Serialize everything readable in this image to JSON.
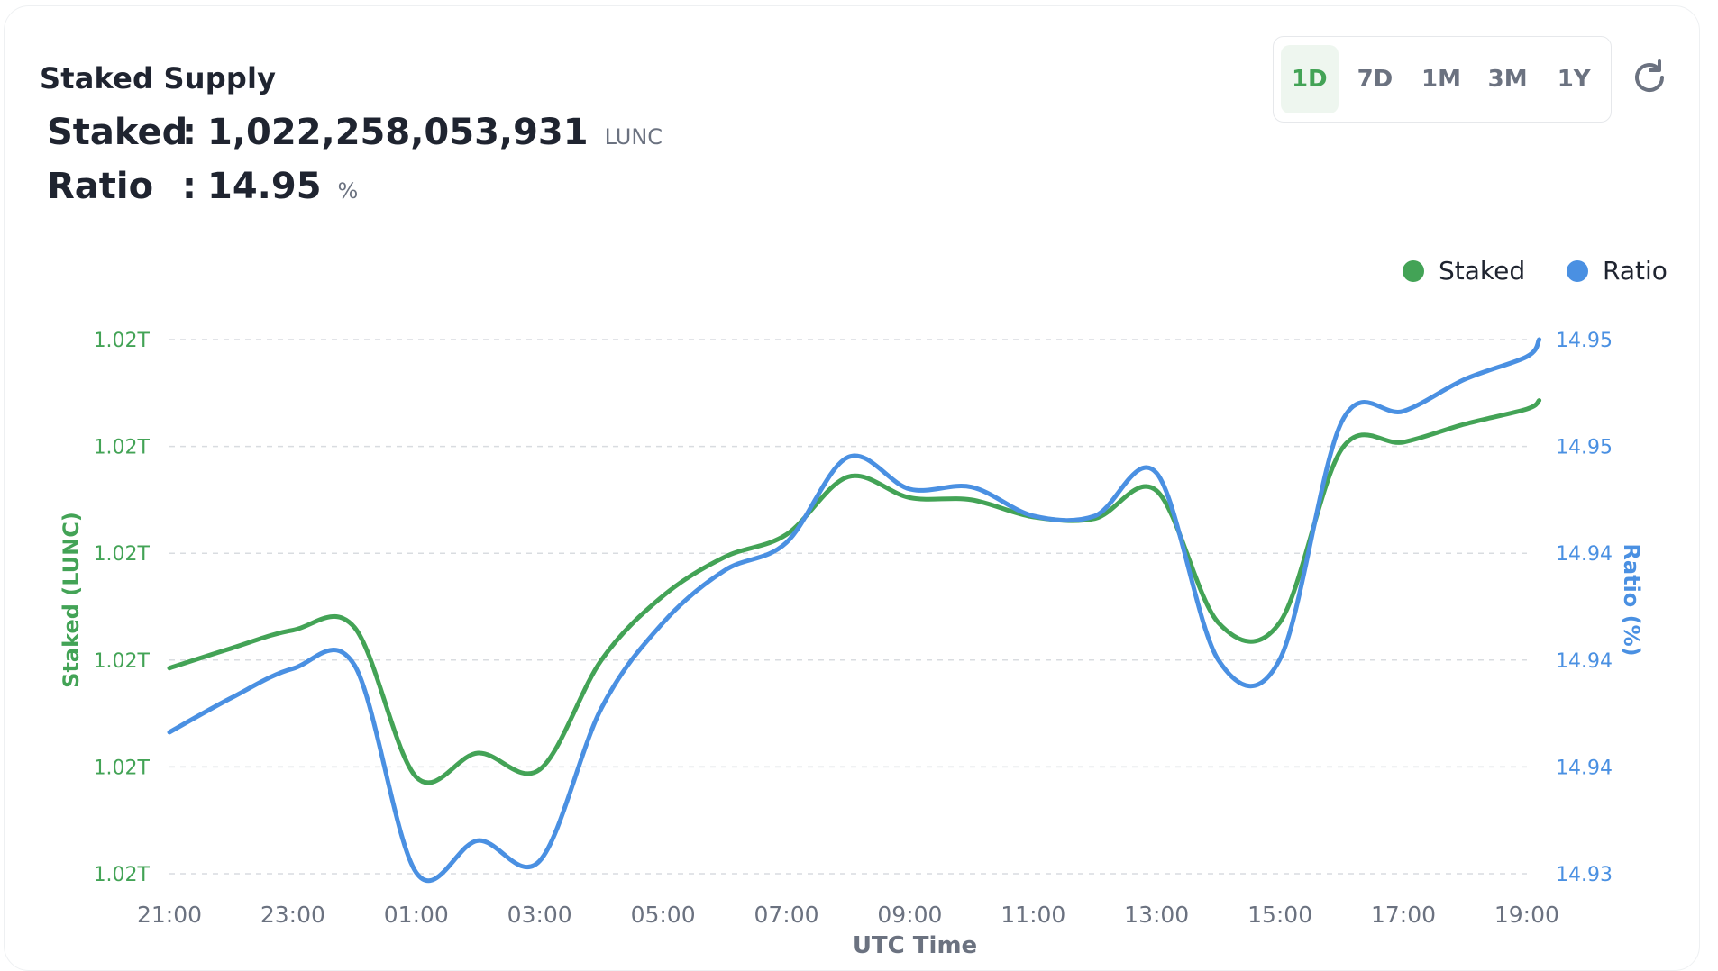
{
  "header": {
    "title": "Staked Supply",
    "staked_label": "Staked",
    "staked_value": "1,022,258,053,931",
    "staked_unit": "LUNC",
    "ratio_label": "Ratio",
    "ratio_value": "14.95",
    "ratio_unit": "%",
    "colon": ":"
  },
  "range_buttons": [
    "1D",
    "7D",
    "1M",
    "3M",
    "1Y"
  ],
  "active_range": "1D",
  "icons": {
    "refresh": "refresh-icon"
  },
  "colors": {
    "staked": "#43a356",
    "ratio": "#4a90e2",
    "grid": "#d9dce0",
    "axis_text": "#6b7280",
    "active_bg": "#eef6ef"
  },
  "chart_data": {
    "type": "line",
    "xlabel": "UTC Time",
    "ylabel_left": "Staked (LUNC)",
    "ylabel_right": "Ratio (%)",
    "x_ticks": [
      "21:00",
      "23:00",
      "01:00",
      "03:00",
      "05:00",
      "07:00",
      "09:00",
      "11:00",
      "13:00",
      "15:00",
      "17:00",
      "19:00"
    ],
    "y_left_ticks": [
      "1.02T",
      "1.02T",
      "1.02T",
      "1.02T",
      "1.02T",
      "1.02T"
    ],
    "y_right_ticks": [
      "14.93",
      "14.94",
      "14.94",
      "14.94",
      "14.95",
      "14.95"
    ],
    "x_hours": [
      0,
      1,
      2,
      3,
      4,
      5,
      6,
      7,
      8,
      9,
      10,
      11,
      12,
      13,
      14,
      15,
      16,
      17,
      18,
      19,
      20,
      21,
      22,
      22.2
    ],
    "series": [
      {
        "name": "Staked",
        "axis": "left",
        "index_values": [
          1.925,
          2.11,
          2.28,
          2.305,
          0.905,
          1.13,
          0.975,
          2.0,
          2.6,
          2.965,
          3.175,
          3.715,
          3.52,
          3.5,
          3.34,
          3.325,
          3.585,
          2.35,
          2.355,
          3.975,
          4.04,
          4.21,
          4.35,
          4.43
        ]
      },
      {
        "name": "Ratio",
        "axis": "right",
        "index_values": [
          1.325,
          1.645,
          1.92,
          1.95,
          0.01,
          0.31,
          0.12,
          1.55,
          2.35,
          2.84,
          3.1,
          3.9,
          3.6,
          3.62,
          3.35,
          3.35,
          3.75,
          2.0,
          2.01,
          4.23,
          4.33,
          4.63,
          4.84,
          5.0
        ]
      }
    ],
    "legend": [
      "Staked",
      "Ratio"
    ],
    "legend_position": "top-right",
    "grid": true
  }
}
